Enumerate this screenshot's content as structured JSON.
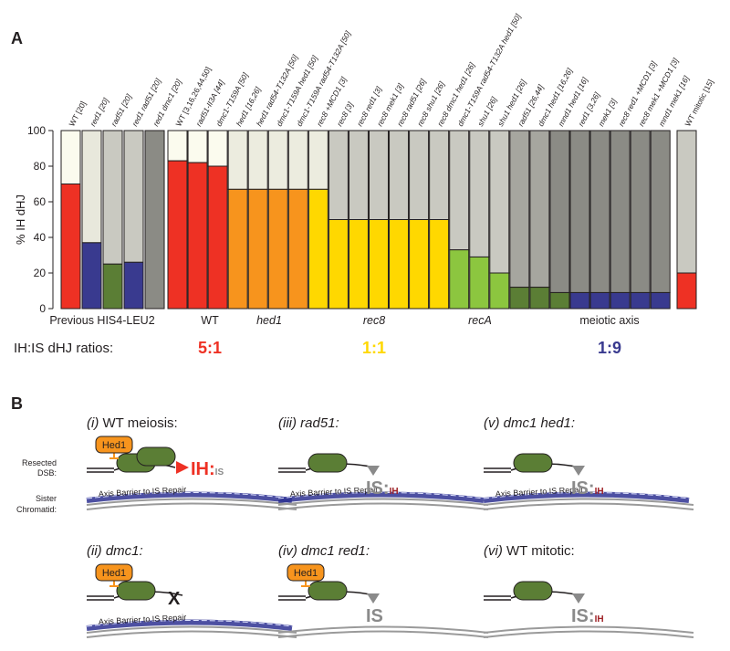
{
  "panel_labels": [
    "A",
    "B"
  ],
  "chart_data": {
    "type": "bar",
    "ylabel": "% IH dHJ",
    "categories": [
      "WT [20]",
      "red1 [20]",
      "rad51 [20]",
      "red1 rad51 [20]",
      "red1 dmc1 [20]",
      "WT [3,16,26,44,50]",
      "rad51-II3A [44]",
      "dmc1-T159A [50]",
      "hed1 [16,26]",
      "hed1 rad54-T132A [50]",
      "dmc1-T159A hed1 [50]",
      "dmc1-T159A rad54-T132A [50]",
      "rec8 +MCD1 [3]",
      "rec8 [3]",
      "rec8 red1 [3]",
      "rec8 mek1 [3]",
      "rec8 rad51 [26]",
      "rec8 shu1 [26]",
      "rec8 dmc1 hed1 [26]",
      "dmc1-T159A rad54-T132A hed1 [50]",
      "shu1 [26]",
      "shu1 hed1 [26]",
      "rad51 [26,44]",
      "dmc1 hed1 [16,26]",
      "mnd1 hed1 [16]",
      "red1 [3,26]",
      "mek1 [3]",
      "rec8 red1 +MCD1 [3]",
      "rec8 mek1 +MCD1 [3]",
      "mnd1 mek1 [16]",
      "WT mitotic [15]"
    ],
    "values": [
      70,
      37,
      25,
      26,
      0,
      83,
      82,
      80,
      67,
      67,
      67,
      67,
      67,
      50,
      50,
      50,
      50,
      50,
      50,
      33,
      29,
      20,
      12,
      12,
      9,
      9,
      9,
      9,
      9,
      9,
      20
    ],
    "colors": [
      "#ee3124",
      "#393a8f",
      "#5b7e35",
      "#393a8f",
      "#5b7e35",
      "#ee3124",
      "#ee3124",
      "#ee3124",
      "#f7941d",
      "#f7941d",
      "#f7941d",
      "#f7941d",
      "#ffd800",
      "#ffd800",
      "#ffd800",
      "#ffd800",
      "#ffd800",
      "#ffd800",
      "#ffd800",
      "#8cc63f",
      "#8cc63f",
      "#8cc63f",
      "#5b7e35",
      "#5b7e35",
      "#5b7e35",
      "#393a8f",
      "#393a8f",
      "#393a8f",
      "#393a8f",
      "#393a8f",
      "#ee3124"
    ],
    "top_colors": [
      "#fbfbee",
      "#e8e8dc",
      "#c9c9c1",
      "#c9c9c1",
      "#8b8b85",
      "#fbfbee",
      "#fbfbee",
      "#fbfbee",
      "#ececdf",
      "#ececdf",
      "#ececdf",
      "#ececdf",
      "#ececdf",
      "#c9c9c1",
      "#c9c9c1",
      "#c9c9c1",
      "#c9c9c1",
      "#c9c9c1",
      "#c9c9c1",
      "#c9c9c1",
      "#c9c9c1",
      "#c9c9c1",
      "#a6a69f",
      "#a6a69f",
      "#8b8b85",
      "#8b8b85",
      "#8b8b85",
      "#8b8b85",
      "#8b8b85",
      "#8b8b85",
      "#c9c9c1"
    ],
    "ylim": [
      0,
      100
    ],
    "yticks": [
      0,
      20,
      40,
      60,
      80,
      100
    ],
    "groups": [
      "Previous HIS4-LEU2",
      "WT",
      "hed1",
      "rec8",
      "recA",
      "meiotic axis"
    ],
    "ratio_label": "IH:IS dHJ ratios:",
    "ratios": [
      {
        "text": "5:1",
        "color": "#ee3124"
      },
      {
        "text": "1:1",
        "color": "#ffd800"
      },
      {
        "text": "1:9",
        "color": "#393a8f"
      }
    ]
  },
  "panel_b": {
    "side_labels": [
      [
        "Resected",
        "DSB:"
      ],
      [
        "Sister",
        "Chromatid:"
      ]
    ],
    "diagrams": [
      {
        "numeral": "(i)",
        "name": "WT meiosis:",
        "hed1": "Hed1",
        "barrier": "Axis Barrier to IS Repair",
        "major": "IH:",
        "minor": "IS"
      },
      {
        "numeral": "(iii)",
        "name": "rad51:",
        "barrier": "Axis Barrier to IS Repair",
        "major": "IS:",
        "minor": "IH"
      },
      {
        "numeral": "(v)",
        "name": "dmc1 hed1:",
        "barrier": "Axis Barrier to IS Repair",
        "major": "IS:",
        "minor": "IH"
      },
      {
        "numeral": "(ii)",
        "name": "dmc1:",
        "hed1": "Hed1",
        "barrier": "Axis Barrier to IS Repair",
        "major": "X"
      },
      {
        "numeral": "(iv)",
        "name": "dmc1 red1:",
        "hed1": "Hed1",
        "major": "IS"
      },
      {
        "numeral": "(vi)",
        "name": "WT mitotic:",
        "major": "IS:",
        "minor": "IH"
      }
    ]
  }
}
